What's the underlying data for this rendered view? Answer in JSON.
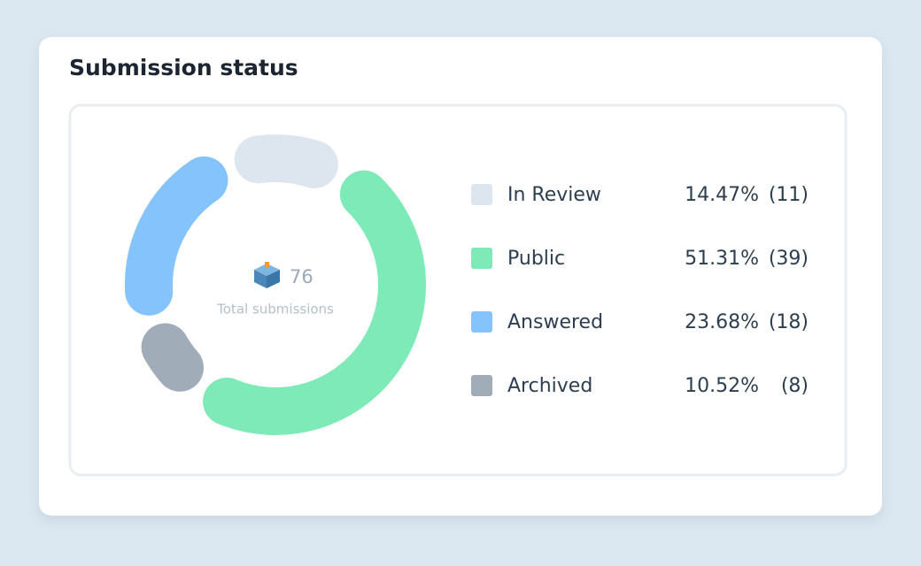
{
  "chart_data": {
    "type": "donut",
    "title": "Submission status",
    "categories": [
      "In Review",
      "Public",
      "Answered",
      "Archived"
    ],
    "values": [
      14.47,
      51.31,
      23.68,
      10.52
    ],
    "value_labels": [
      "14.47%",
      "51.31%",
      "23.68%",
      "10.52%"
    ],
    "counts": [
      11,
      39,
      18,
      8
    ],
    "count_labels": [
      "(11)",
      "(39)",
      "(18)",
      "(8)"
    ],
    "colors": [
      "#dde6ef",
      "#7deab7",
      "#84c3fc",
      "#a0acb8"
    ],
    "total": 76,
    "total_label": "Total submissions"
  }
}
